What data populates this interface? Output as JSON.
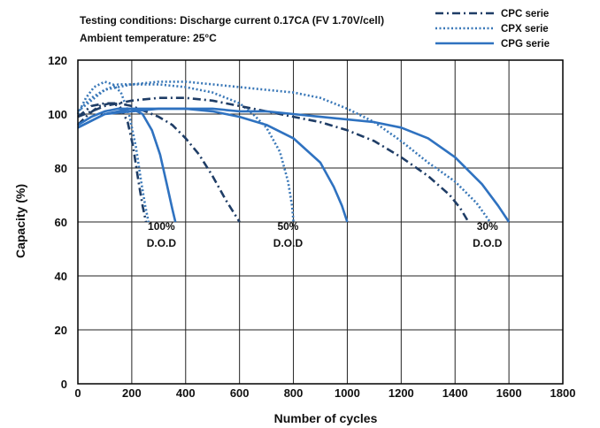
{
  "chart_data": {
    "type": "line",
    "notes": [
      "Testing conditions: Discharge current 0.17CA (FV 1.70V/cell)",
      "Ambient temperature: 25°C"
    ],
    "xlabel": "Number of cycles",
    "ylabel": "Capacity (%)",
    "xlim": [
      0,
      1800
    ],
    "ylim": [
      0,
      120
    ],
    "xticks": [
      0,
      200,
      400,
      600,
      800,
      1000,
      1200,
      1400,
      1600,
      1800
    ],
    "yticks": [
      0,
      20,
      40,
      60,
      80,
      100,
      120
    ],
    "grid": true,
    "legend_position": "top-right",
    "legend": [
      {
        "name": "CPC serie",
        "color": "#1f3d66",
        "style": "dashdot"
      },
      {
        "name": "CPX serie",
        "color": "#3a78b8",
        "style": "dotted"
      },
      {
        "name": "CPG serie",
        "color": "#2f72c0",
        "style": "solid"
      }
    ],
    "series": [
      {
        "name": "CPC serie",
        "dod": "100%",
        "style": "dashdot",
        "color": "#1f3d66",
        "points": [
          [
            0,
            96
          ],
          [
            40,
            100
          ],
          [
            80,
            103
          ],
          [
            120,
            104
          ],
          [
            155,
            103
          ],
          [
            185,
            97
          ],
          [
            205,
            88
          ],
          [
            225,
            75
          ],
          [
            240,
            66
          ],
          [
            253,
            60
          ]
        ]
      },
      {
        "name": "CPX serie",
        "dod": "100%",
        "style": "dotted",
        "color": "#3a78b8",
        "points": [
          [
            0,
            100
          ],
          [
            30,
            106
          ],
          [
            60,
            110
          ],
          [
            100,
            112
          ],
          [
            130,
            111
          ],
          [
            160,
            108
          ],
          [
            190,
            100
          ],
          [
            215,
            88
          ],
          [
            235,
            75
          ],
          [
            250,
            66
          ],
          [
            262,
            60
          ]
        ]
      },
      {
        "name": "CPG serie",
        "dod": "100%",
        "style": "solid",
        "color": "#2f72c0",
        "points": [
          [
            0,
            96
          ],
          [
            50,
            99
          ],
          [
            100,
            101
          ],
          [
            150,
            102
          ],
          [
            200,
            102
          ],
          [
            240,
            100
          ],
          [
            275,
            94
          ],
          [
            305,
            85
          ],
          [
            330,
            74
          ],
          [
            350,
            65
          ],
          [
            362,
            60
          ]
        ]
      },
      {
        "name": "CPC serie",
        "dod": "50%",
        "style": "dashdot",
        "color": "#1f3d66",
        "points": [
          [
            0,
            99
          ],
          [
            50,
            103
          ],
          [
            100,
            104
          ],
          [
            150,
            104
          ],
          [
            200,
            103
          ],
          [
            250,
            101
          ],
          [
            300,
            99
          ],
          [
            350,
            96
          ],
          [
            400,
            91
          ],
          [
            450,
            85
          ],
          [
            500,
            77
          ],
          [
            550,
            68
          ],
          [
            600,
            60
          ]
        ]
      },
      {
        "name": "CPX serie",
        "dod": "50%",
        "style": "dotted",
        "color": "#3a78b8",
        "points": [
          [
            0,
            101
          ],
          [
            50,
            106
          ],
          [
            100,
            109
          ],
          [
            150,
            111
          ],
          [
            200,
            111
          ],
          [
            300,
            111
          ],
          [
            400,
            110
          ],
          [
            500,
            108
          ],
          [
            600,
            104
          ],
          [
            650,
            100
          ],
          [
            700,
            95
          ],
          [
            750,
            86
          ],
          [
            780,
            75
          ],
          [
            795,
            66
          ],
          [
            800,
            60
          ]
        ]
      },
      {
        "name": "CPG serie",
        "dod": "50%",
        "style": "solid",
        "color": "#2f72c0",
        "points": [
          [
            0,
            95
          ],
          [
            100,
            100
          ],
          [
            200,
            102
          ],
          [
            300,
            102
          ],
          [
            400,
            102
          ],
          [
            500,
            101
          ],
          [
            600,
            99
          ],
          [
            700,
            96
          ],
          [
            800,
            91
          ],
          [
            900,
            82
          ],
          [
            950,
            73
          ],
          [
            980,
            66
          ],
          [
            1000,
            60
          ]
        ]
      },
      {
        "name": "CPC serie",
        "dod": "30%",
        "style": "dashdot",
        "color": "#1f3d66",
        "points": [
          [
            0,
            99
          ],
          [
            100,
            103
          ],
          [
            200,
            105
          ],
          [
            300,
            106
          ],
          [
            400,
            106
          ],
          [
            500,
            105
          ],
          [
            600,
            103
          ],
          [
            700,
            101
          ],
          [
            800,
            99
          ],
          [
            900,
            97
          ],
          [
            1000,
            94
          ],
          [
            1100,
            90
          ],
          [
            1200,
            84
          ],
          [
            1300,
            77
          ],
          [
            1380,
            70
          ],
          [
            1420,
            65
          ],
          [
            1450,
            60
          ]
        ]
      },
      {
        "name": "CPX serie",
        "dod": "30%",
        "style": "dotted",
        "color": "#3a78b8",
        "points": [
          [
            0,
            101
          ],
          [
            100,
            109
          ],
          [
            200,
            111
          ],
          [
            300,
            112
          ],
          [
            400,
            112
          ],
          [
            500,
            111
          ],
          [
            600,
            110
          ],
          [
            700,
            109
          ],
          [
            800,
            108
          ],
          [
            900,
            106
          ],
          [
            1000,
            102
          ],
          [
            1100,
            97
          ],
          [
            1200,
            90
          ],
          [
            1300,
            82
          ],
          [
            1400,
            75
          ],
          [
            1480,
            67
          ],
          [
            1530,
            60
          ]
        ]
      },
      {
        "name": "CPG serie",
        "dod": "30%",
        "style": "solid",
        "color": "#2f72c0",
        "points": [
          [
            0,
            95
          ],
          [
            100,
            100
          ],
          [
            200,
            101
          ],
          [
            300,
            102
          ],
          [
            400,
            102
          ],
          [
            500,
            102
          ],
          [
            600,
            101
          ],
          [
            700,
            101
          ],
          [
            800,
            100
          ],
          [
            900,
            99
          ],
          [
            1000,
            98
          ],
          [
            1100,
            97
          ],
          [
            1200,
            95
          ],
          [
            1300,
            91
          ],
          [
            1400,
            84
          ],
          [
            1500,
            74
          ],
          [
            1560,
            66
          ],
          [
            1600,
            60
          ]
        ]
      }
    ],
    "dod_labels": [
      {
        "lines": [
          "100%",
          "D.O.D"
        ],
        "x": 310,
        "y": 57
      },
      {
        "lines": [
          "50%",
          "D.O.D"
        ],
        "x": 780,
        "y": 57
      },
      {
        "lines": [
          "30%",
          "D.O.D"
        ],
        "x": 1520,
        "y": 57
      }
    ]
  }
}
